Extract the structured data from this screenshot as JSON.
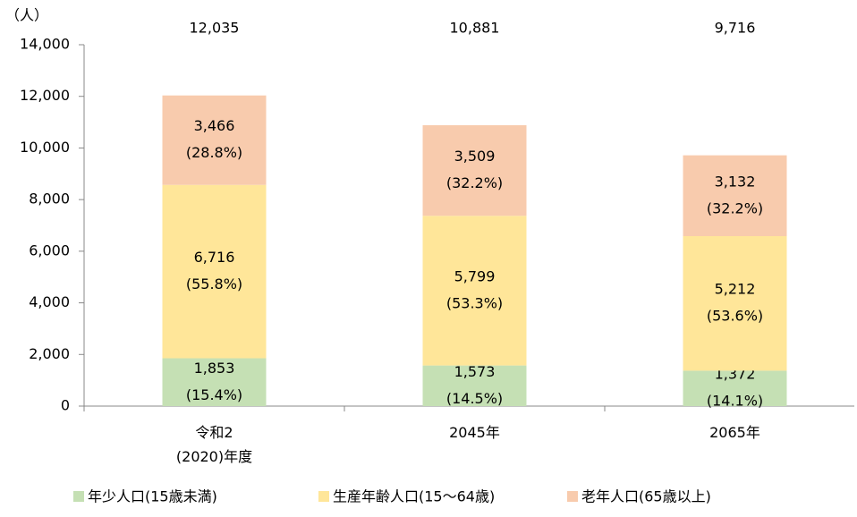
{
  "chart_data": {
    "type": "stacked-bar",
    "y_unit_label": "（人）",
    "categories": [
      "令和2\n(2020)年度",
      "2045年",
      "2065年"
    ],
    "series": [
      {
        "name": "年少人口(15歳未満)",
        "color": "#c5e0b4",
        "values": [
          1853,
          1573,
          1372
        ],
        "value_labels": [
          "1,853",
          "1,573",
          "1,372"
        ],
        "percent_labels": [
          "(15.4%)",
          "(14.5%)",
          "(14.1%)"
        ]
      },
      {
        "name": "生産年齢人口(15～64歳)",
        "color": "#ffe699",
        "values": [
          6716,
          5799,
          5212
        ],
        "value_labels": [
          "6,716",
          "5,799",
          "5,212"
        ],
        "percent_labels": [
          "(55.8%)",
          "(53.3%)",
          "(53.6%)"
        ]
      },
      {
        "name": "老年人口(65歳以上)",
        "color": "#f8cbad",
        "values": [
          3466,
          3509,
          3132
        ],
        "value_labels": [
          "3,466",
          "3,509",
          "3,132"
        ],
        "percent_labels": [
          "(28.8%)",
          "(32.2%)",
          "(32.2%)"
        ]
      }
    ],
    "totals": [
      12035,
      10881,
      9716
    ],
    "total_labels": [
      "12,035",
      "10,881",
      "9,716"
    ],
    "ylim": [
      0,
      14000
    ],
    "yticks": [
      0,
      {
        "value": 2000,
        "label": "2,000"
      },
      {
        "value": 4000,
        "label": "4,000"
      },
      {
        "value": 6000,
        "label": "6,000"
      },
      {
        "value": 8000,
        "label": "8,000"
      },
      {
        "value": 10000,
        "label": "10,000"
      },
      {
        "value": 12000,
        "label": "12,000"
      },
      {
        "value": 14000,
        "label": "14,000"
      }
    ],
    "legend": "bottom"
  }
}
